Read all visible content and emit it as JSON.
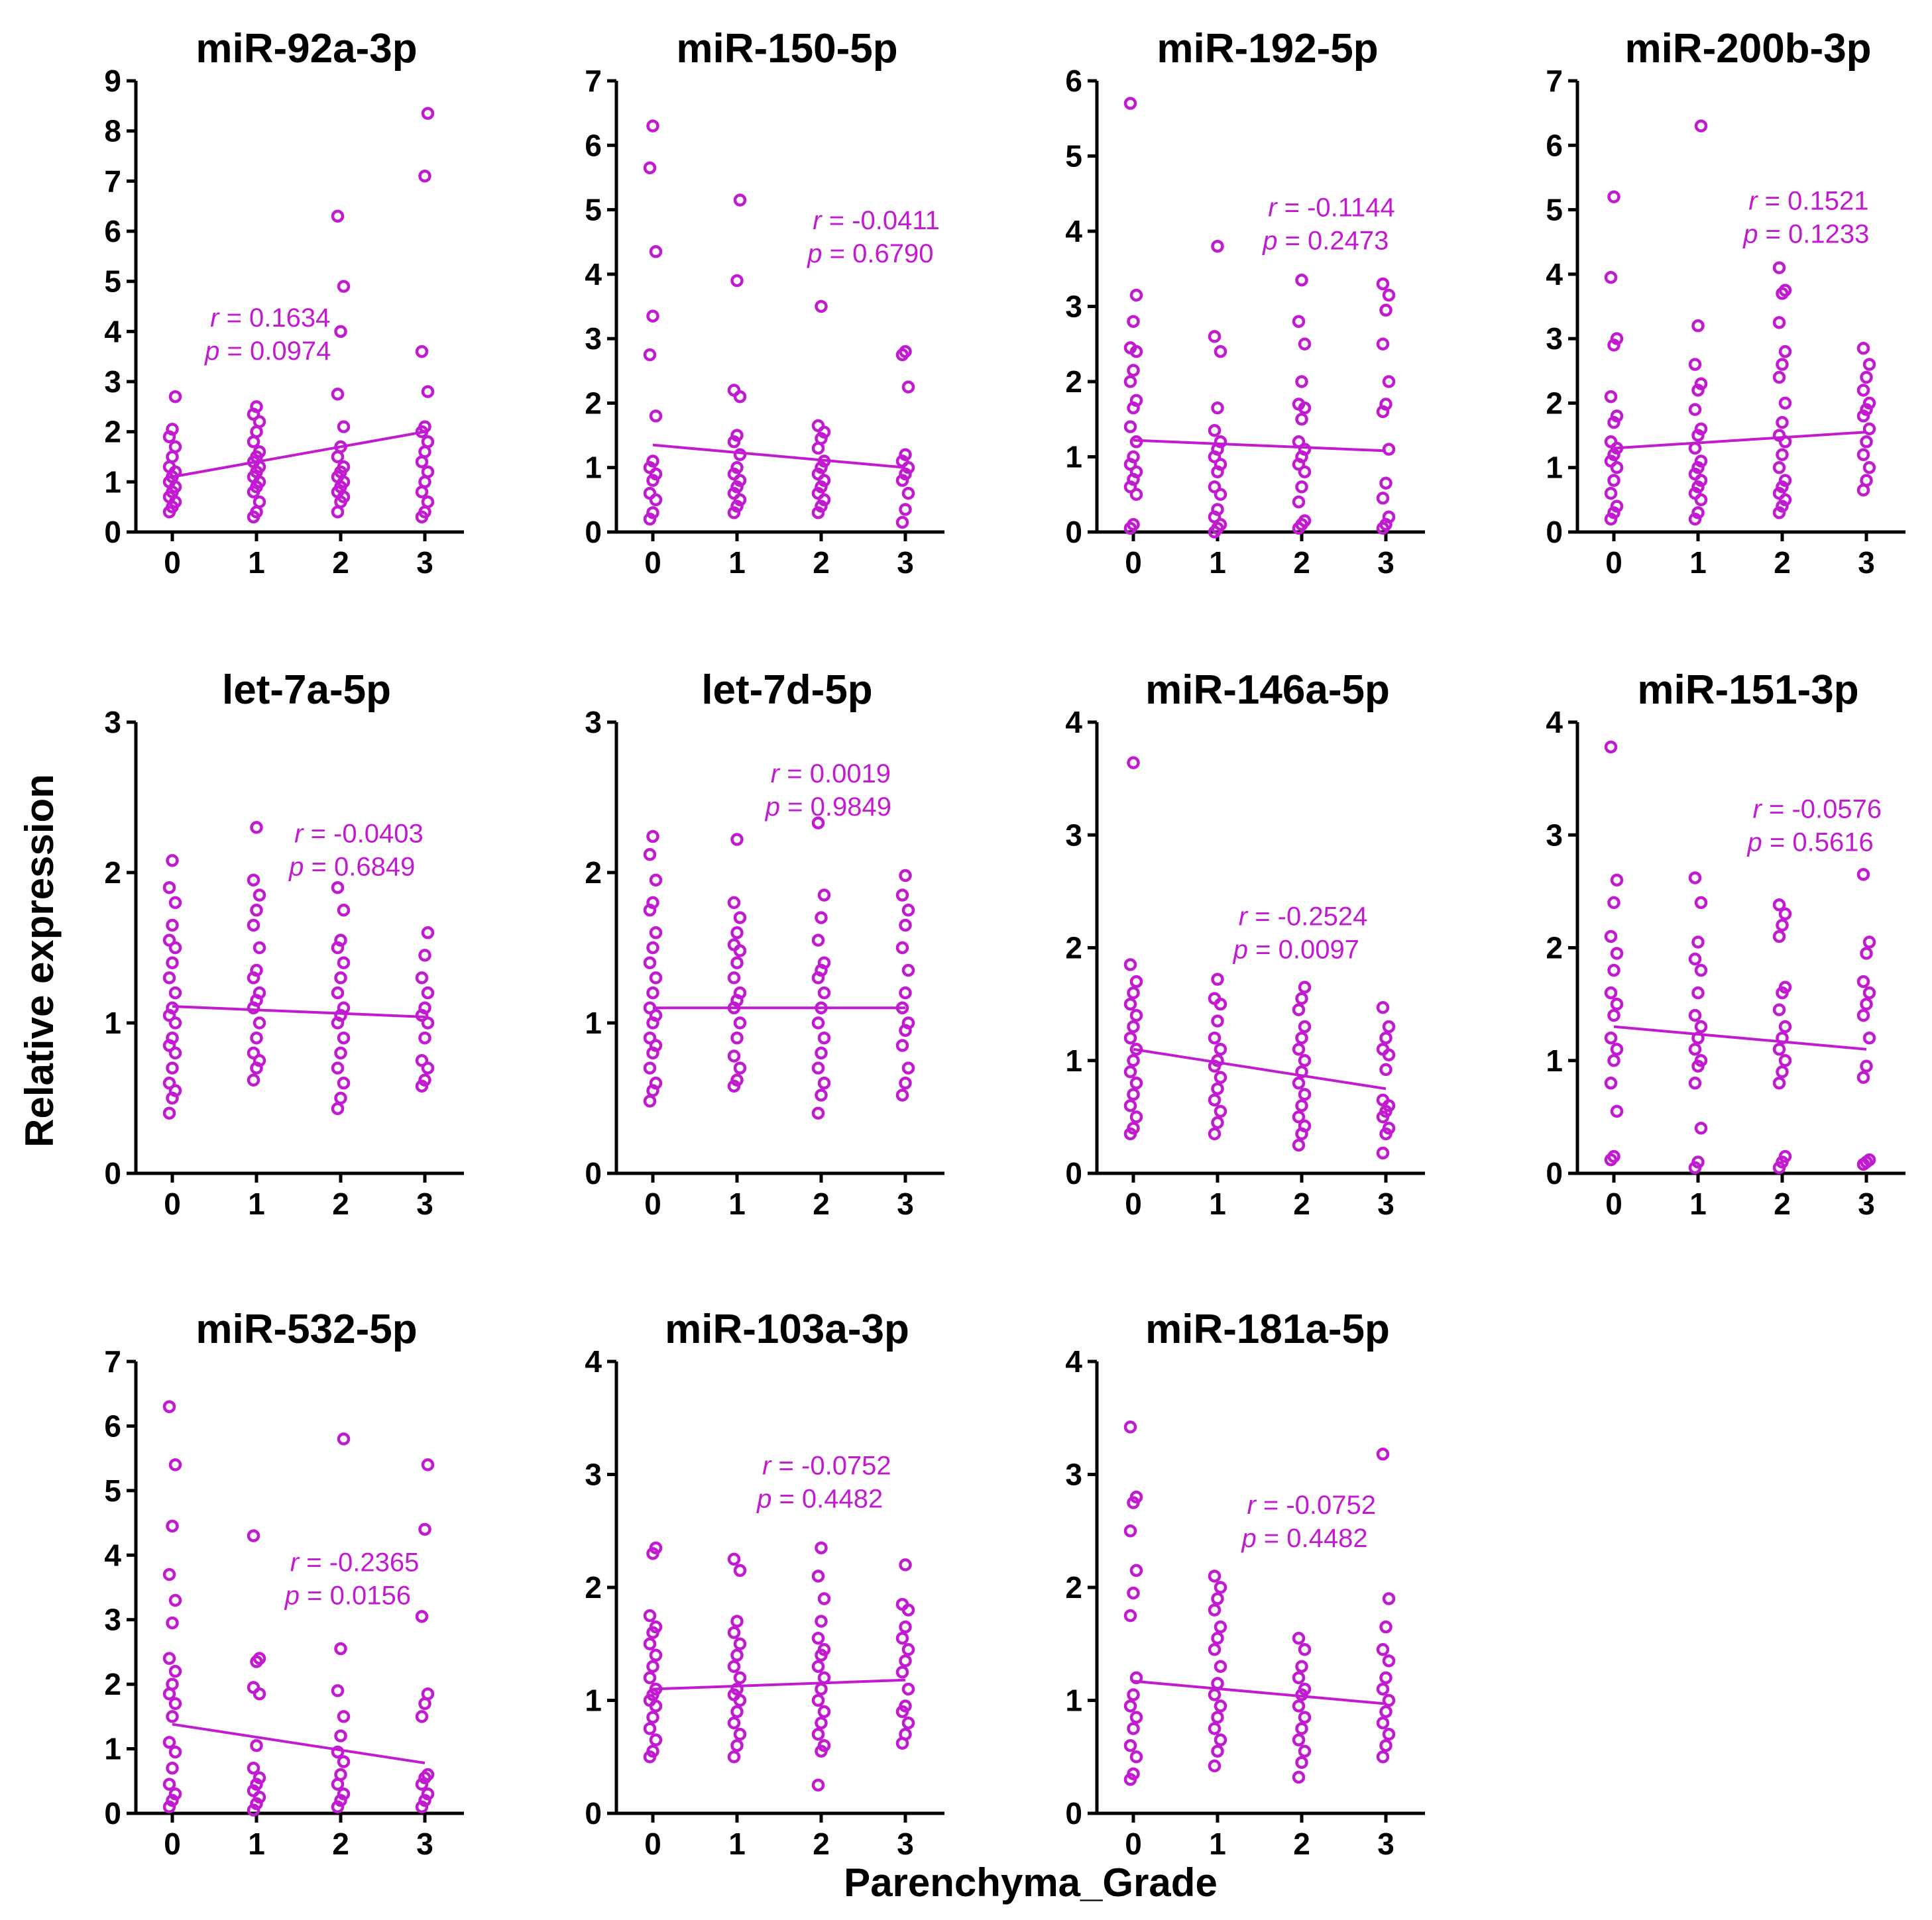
{
  "colors": {
    "marker": "#c21ad1",
    "axis": "#000000",
    "text": "#000000"
  },
  "labels": {
    "ylabel": "Relative expression",
    "xlabel": "Parenchyma_Grade"
  },
  "chart_data": [
    {
      "type": "scatter",
      "title": "miR-92a-3p",
      "categories": [
        "0",
        "1",
        "2",
        "3"
      ],
      "ylim": [
        0,
        9
      ],
      "yticks": [
        0,
        1,
        2,
        3,
        4,
        5,
        6,
        7,
        8,
        9
      ],
      "r_label": "r",
      "r_value": "= 0.1634",
      "p_label": "p",
      "p_value": "= 0.0974",
      "stat_pos": {
        "x": 0.45,
        "y": 4.1
      },
      "fit": {
        "start": 1.1,
        "end": 2.0
      },
      "series": [
        [
          0.4,
          0.5,
          0.6,
          0.7,
          0.8,
          0.9,
          1.0,
          1.1,
          1.2,
          1.3,
          1.5,
          1.7,
          1.9,
          2.05,
          2.7
        ],
        [
          0.3,
          0.4,
          0.6,
          0.8,
          0.9,
          1.0,
          1.1,
          1.2,
          1.3,
          1.4,
          1.5,
          1.6,
          1.8,
          2.0,
          2.2,
          2.35,
          2.5
        ],
        [
          0.4,
          0.6,
          0.7,
          0.8,
          0.9,
          1.0,
          1.1,
          1.2,
          1.3,
          1.5,
          1.7,
          2.1,
          2.75,
          4.0,
          4.9,
          6.3
        ],
        [
          0.3,
          0.4,
          0.6,
          0.8,
          1.0,
          1.2,
          1.4,
          1.6,
          1.8,
          2.0,
          2.1,
          2.8,
          3.6,
          7.1,
          8.35
        ]
      ]
    },
    {
      "type": "scatter",
      "title": "miR-150-5p",
      "categories": [
        "0",
        "1",
        "2",
        "3"
      ],
      "ylim": [
        0,
        7
      ],
      "yticks": [
        0,
        1,
        2,
        3,
        4,
        5,
        6,
        7
      ],
      "r_label": "r",
      "r_value": "= -0.0411",
      "p_label": "p",
      "p_value": "= 0.6790",
      "stat_pos": {
        "x": 1.9,
        "y": 4.7
      },
      "fit": {
        "start": 1.35,
        "end": 1.0
      },
      "series": [
        [
          0.2,
          0.3,
          0.5,
          0.6,
          0.8,
          0.9,
          1.0,
          1.1,
          1.8,
          2.75,
          3.35,
          4.35,
          5.65,
          6.3
        ],
        [
          0.3,
          0.4,
          0.5,
          0.6,
          0.7,
          0.8,
          0.9,
          1.0,
          1.2,
          1.4,
          1.5,
          2.1,
          2.2,
          3.9,
          5.15
        ],
        [
          0.3,
          0.4,
          0.5,
          0.6,
          0.7,
          0.8,
          0.9,
          1.0,
          1.1,
          1.3,
          1.45,
          1.55,
          1.65,
          3.5
        ],
        [
          0.15,
          0.35,
          0.6,
          0.8,
          0.9,
          1.0,
          1.1,
          1.2,
          2.25,
          2.75,
          2.8
        ]
      ]
    },
    {
      "type": "scatter",
      "title": "miR-192-5p",
      "categories": [
        "0",
        "1",
        "2",
        "3"
      ],
      "ylim": [
        0,
        6
      ],
      "yticks": [
        0,
        1,
        2,
        3,
        4,
        5,
        6
      ],
      "r_label": "r",
      "r_value": "= -0.1144",
      "p_label": "p",
      "p_value": "= 0.2473",
      "stat_pos": {
        "x": 1.6,
        "y": 4.2
      },
      "fit": {
        "start": 1.22,
        "end": 1.08
      },
      "series": [
        [
          0.05,
          0.1,
          0.5,
          0.6,
          0.7,
          0.8,
          0.9,
          1.0,
          1.2,
          1.4,
          1.65,
          1.75,
          2.0,
          2.15,
          2.4,
          2.45,
          2.8,
          3.15,
          5.7
        ],
        [
          0.0,
          0.05,
          0.1,
          0.2,
          0.3,
          0.5,
          0.6,
          0.8,
          0.9,
          1.0,
          1.1,
          1.2,
          1.35,
          1.65,
          2.4,
          2.6,
          3.8
        ],
        [
          0.05,
          0.1,
          0.15,
          0.4,
          0.6,
          0.8,
          0.9,
          1.0,
          1.1,
          1.2,
          1.5,
          1.65,
          1.7,
          2.0,
          2.5,
          2.8,
          3.35
        ],
        [
          0.05,
          0.1,
          0.2,
          0.45,
          0.65,
          1.1,
          1.6,
          1.7,
          2.0,
          2.5,
          2.95,
          3.15,
          3.3
        ]
      ]
    },
    {
      "type": "scatter",
      "title": "miR-200b-3p",
      "categories": [
        "0",
        "1",
        "2",
        "3"
      ],
      "ylim": [
        0,
        7
      ],
      "yticks": [
        0,
        1,
        2,
        3,
        4,
        5,
        6,
        7
      ],
      "r_label": "r",
      "r_value": "= 0.1521",
      "p_label": "p",
      "p_value": "= 0.1233",
      "stat_pos": {
        "x": 1.6,
        "y": 5.0
      },
      "fit": {
        "start": 1.3,
        "end": 1.55
      },
      "series": [
        [
          0.2,
          0.3,
          0.4,
          0.6,
          0.8,
          1.0,
          1.1,
          1.2,
          1.3,
          1.4,
          1.7,
          1.8,
          2.1,
          2.9,
          3.0,
          3.95,
          5.2
        ],
        [
          0.2,
          0.3,
          0.5,
          0.6,
          0.7,
          0.8,
          0.9,
          1.0,
          1.1,
          1.3,
          1.5,
          1.6,
          1.9,
          2.2,
          2.3,
          2.6,
          3.2,
          6.3
        ],
        [
          0.3,
          0.4,
          0.5,
          0.6,
          0.7,
          0.8,
          1.0,
          1.2,
          1.4,
          1.5,
          1.7,
          2.0,
          2.4,
          2.6,
          2.8,
          3.25,
          3.7,
          3.75,
          4.1
        ],
        [
          0.65,
          0.8,
          1.0,
          1.2,
          1.4,
          1.6,
          1.8,
          1.9,
          2.0,
          2.2,
          2.4,
          2.6,
          2.85
        ]
      ]
    },
    {
      "type": "scatter",
      "title": "let-7a-5p",
      "categories": [
        "0",
        "1",
        "2",
        "3"
      ],
      "ylim": [
        0,
        3
      ],
      "yticks": [
        0,
        1,
        2,
        3
      ],
      "r_label": "r",
      "r_value": "= -0.0403",
      "p_label": "p",
      "p_value": "= 0.6849",
      "stat_pos": {
        "x": 1.45,
        "y": 2.2
      },
      "fit": {
        "start": 1.11,
        "end": 1.04
      },
      "series": [
        [
          0.4,
          0.5,
          0.55,
          0.6,
          0.7,
          0.8,
          0.85,
          0.9,
          1.0,
          1.05,
          1.1,
          1.2,
          1.3,
          1.4,
          1.5,
          1.55,
          1.65,
          1.8,
          1.9,
          2.08
        ],
        [
          0.62,
          0.7,
          0.75,
          0.8,
          0.9,
          1.0,
          1.1,
          1.15,
          1.2,
          1.3,
          1.35,
          1.5,
          1.65,
          1.75,
          1.85,
          1.95,
          2.3
        ],
        [
          0.43,
          0.5,
          0.6,
          0.7,
          0.8,
          0.9,
          1.0,
          1.05,
          1.1,
          1.2,
          1.3,
          1.4,
          1.5,
          1.55,
          1.75,
          1.9
        ],
        [
          0.58,
          0.62,
          0.7,
          0.75,
          0.9,
          1.0,
          1.05,
          1.1,
          1.2,
          1.3,
          1.45,
          1.6
        ]
      ]
    },
    {
      "type": "scatter",
      "title": "let-7d-5p",
      "categories": [
        "0",
        "1",
        "2",
        "3"
      ],
      "ylim": [
        0,
        3
      ],
      "yticks": [
        0,
        1,
        2,
        3
      ],
      "r_label": "r",
      "r_value": "= 0.0019",
      "p_label": "p",
      "p_value": "= 0.9849",
      "stat_pos": {
        "x": 1.4,
        "y": 2.6
      },
      "fit": {
        "start": 1.1,
        "end": 1.1
      },
      "series": [
        [
          0.48,
          0.55,
          0.6,
          0.7,
          0.8,
          0.85,
          0.9,
          1.0,
          1.05,
          1.1,
          1.2,
          1.3,
          1.4,
          1.5,
          1.6,
          1.75,
          1.8,
          1.95,
          2.12,
          2.24
        ],
        [
          0.58,
          0.62,
          0.7,
          0.78,
          0.9,
          1.0,
          1.1,
          1.15,
          1.2,
          1.3,
          1.4,
          1.48,
          1.52,
          1.6,
          1.7,
          1.8,
          2.22
        ],
        [
          0.4,
          0.52,
          0.6,
          0.7,
          0.8,
          0.9,
          1.0,
          1.1,
          1.2,
          1.3,
          1.35,
          1.4,
          1.55,
          1.7,
          1.85,
          2.33
        ],
        [
          0.52,
          0.6,
          0.7,
          0.85,
          0.95,
          1.0,
          1.1,
          1.2,
          1.35,
          1.5,
          1.65,
          1.75,
          1.85,
          1.98
        ]
      ]
    },
    {
      "type": "scatter",
      "title": "miR-146a-5p",
      "categories": [
        "0",
        "1",
        "2",
        "3"
      ],
      "ylim": [
        0,
        4
      ],
      "yticks": [
        0,
        1,
        2,
        3,
        4
      ],
      "r_label": "r",
      "r_value": "= -0.2524",
      "p_label": "p",
      "p_value": "= 0.0097",
      "stat_pos": {
        "x": 1.25,
        "y": 2.2
      },
      "fit": {
        "start": 1.1,
        "end": 0.75
      },
      "series": [
        [
          0.35,
          0.4,
          0.5,
          0.6,
          0.7,
          0.8,
          0.9,
          1.0,
          1.1,
          1.2,
          1.3,
          1.4,
          1.5,
          1.6,
          1.7,
          1.85,
          3.64
        ],
        [
          0.35,
          0.45,
          0.55,
          0.65,
          0.75,
          0.85,
          0.95,
          1.0,
          1.1,
          1.2,
          1.35,
          1.5,
          1.55,
          1.72
        ],
        [
          0.25,
          0.35,
          0.42,
          0.5,
          0.6,
          0.7,
          0.8,
          0.9,
          1.0,
          1.1,
          1.2,
          1.3,
          1.45,
          1.55,
          1.65
        ],
        [
          0.18,
          0.35,
          0.4,
          0.5,
          0.55,
          0.6,
          0.65,
          0.92,
          1.05,
          1.1,
          1.2,
          1.3,
          1.47
        ]
      ]
    },
    {
      "type": "scatter",
      "title": "miR-151-3p",
      "categories": [
        "0",
        "1",
        "2",
        "3"
      ],
      "ylim": [
        0,
        4
      ],
      "yticks": [
        0,
        1,
        2,
        3,
        4
      ],
      "r_label": "r",
      "r_value": "= -0.0576",
      "p_label": "p",
      "p_value": "= 0.5616",
      "stat_pos": {
        "x": 1.65,
        "y": 3.15
      },
      "fit": {
        "start": 1.3,
        "end": 1.1
      },
      "series": [
        [
          0.12,
          0.15,
          0.55,
          0.8,
          1.0,
          1.1,
          1.2,
          1.4,
          1.5,
          1.6,
          1.8,
          1.95,
          2.1,
          2.4,
          2.6,
          3.78
        ],
        [
          0.05,
          0.1,
          0.4,
          0.8,
          0.95,
          1.0,
          1.1,
          1.2,
          1.3,
          1.4,
          1.6,
          1.8,
          1.9,
          2.05,
          2.4,
          2.62
        ],
        [
          0.05,
          0.1,
          0.15,
          0.8,
          0.9,
          1.0,
          1.1,
          1.2,
          1.3,
          1.45,
          1.6,
          1.65,
          2.1,
          2.2,
          2.3,
          2.38
        ],
        [
          0.08,
          0.1,
          0.12,
          0.85,
          0.95,
          1.2,
          1.4,
          1.5,
          1.6,
          1.7,
          1.95,
          2.05,
          2.65
        ]
      ]
    },
    {
      "type": "scatter",
      "title": "miR-532-5p",
      "categories": [
        "0",
        "1",
        "2",
        "3"
      ],
      "ylim": [
        0,
        7
      ],
      "yticks": [
        0,
        1,
        2,
        3,
        4,
        5,
        6,
        7
      ],
      "r_label": "r",
      "r_value": "= -0.2365",
      "p_label": "p",
      "p_value": "= 0.0156",
      "stat_pos": {
        "x": 1.4,
        "y": 3.75
      },
      "fit": {
        "start": 1.38,
        "end": 0.78
      },
      "series": [
        [
          0.1,
          0.2,
          0.3,
          0.45,
          0.7,
          0.95,
          1.1,
          1.5,
          1.7,
          1.85,
          2.0,
          2.2,
          2.4,
          2.95,
          3.3,
          3.7,
          4.45,
          5.4,
          6.3
        ],
        [
          0.05,
          0.15,
          0.25,
          0.35,
          0.45,
          0.55,
          0.7,
          1.05,
          1.85,
          1.95,
          2.35,
          2.4,
          4.3
        ],
        [
          0.1,
          0.2,
          0.3,
          0.45,
          0.6,
          0.8,
          0.95,
          1.2,
          1.5,
          1.9,
          2.55,
          5.8
        ],
        [
          0.1,
          0.2,
          0.3,
          0.45,
          0.55,
          0.6,
          1.5,
          1.7,
          1.85,
          3.05,
          4.4,
          5.4
        ]
      ]
    },
    {
      "type": "scatter",
      "title": "miR-103a-3p",
      "categories": [
        "0",
        "1",
        "2",
        "3"
      ],
      "ylim": [
        0,
        4
      ],
      "yticks": [
        0,
        1,
        2,
        3,
        4
      ],
      "r_label": "r",
      "r_value": "= -0.0752",
      "p_label": "p",
      "p_value": "= 0.4482",
      "stat_pos": {
        "x": 1.3,
        "y": 3.0
      },
      "fit": {
        "start": 1.1,
        "end": 1.18
      },
      "series": [
        [
          0.5,
          0.55,
          0.65,
          0.75,
          0.85,
          0.95,
          1.0,
          1.05,
          1.1,
          1.2,
          1.3,
          1.4,
          1.5,
          1.6,
          1.65,
          1.75,
          2.3,
          2.35
        ],
        [
          0.5,
          0.6,
          0.7,
          0.8,
          0.9,
          1.0,
          1.05,
          1.1,
          1.2,
          1.3,
          1.4,
          1.5,
          1.6,
          1.7,
          2.15,
          2.25
        ],
        [
          0.25,
          0.55,
          0.6,
          0.7,
          0.8,
          0.9,
          1.0,
          1.1,
          1.2,
          1.3,
          1.4,
          1.45,
          1.55,
          1.7,
          1.9,
          2.1,
          2.35
        ],
        [
          0.62,
          0.7,
          0.8,
          0.9,
          0.95,
          1.1,
          1.25,
          1.35,
          1.45,
          1.55,
          1.65,
          1.8,
          1.85,
          2.2
        ]
      ]
    },
    {
      "type": "scatter",
      "title": "miR-181a-5p",
      "categories": [
        "0",
        "1",
        "2",
        "3"
      ],
      "ylim": [
        0,
        4
      ],
      "yticks": [
        0,
        1,
        2,
        3,
        4
      ],
      "r_label": "r",
      "r_value": "= -0.0752",
      "p_label": "p",
      "p_value": "= 0.4482",
      "stat_pos": {
        "x": 1.35,
        "y": 2.65
      },
      "fit": {
        "start": 1.17,
        "end": 0.97
      },
      "series": [
        [
          0.3,
          0.35,
          0.5,
          0.6,
          0.75,
          0.85,
          0.95,
          1.05,
          1.2,
          1.75,
          1.95,
          2.15,
          2.5,
          2.75,
          2.8,
          3.42
        ],
        [
          0.42,
          0.55,
          0.65,
          0.75,
          0.85,
          0.95,
          1.05,
          1.15,
          1.3,
          1.45,
          1.55,
          1.65,
          1.8,
          1.9,
          2.0,
          2.1
        ],
        [
          0.32,
          0.45,
          0.55,
          0.65,
          0.75,
          0.85,
          0.95,
          1.05,
          1.1,
          1.2,
          1.3,
          1.45,
          1.55
        ],
        [
          0.5,
          0.6,
          0.7,
          0.8,
          0.9,
          1.0,
          1.1,
          1.2,
          1.35,
          1.45,
          1.65,
          1.9,
          3.18
        ]
      ]
    }
  ]
}
